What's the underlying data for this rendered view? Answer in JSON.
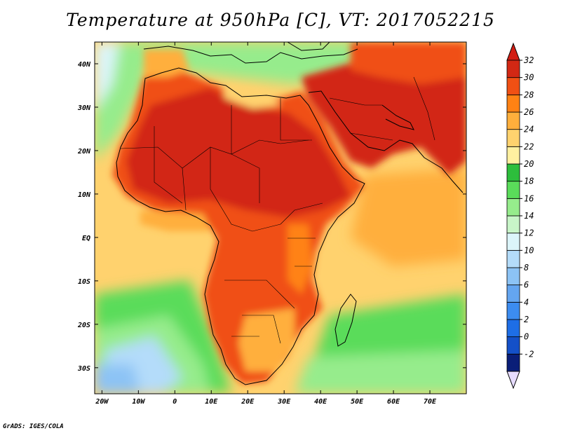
{
  "title": "Temperature at 950hPa [C], VT: 2017052215",
  "credit": "GrADS: IGES/COLA",
  "map": {
    "lon_range": [
      -22,
      80
    ],
    "lat_range": [
      -36,
      45
    ],
    "x_ticks": [
      {
        "lon": -20,
        "label": "20W"
      },
      {
        "lon": -10,
        "label": "10W"
      },
      {
        "lon": 0,
        "label": "0"
      },
      {
        "lon": 10,
        "label": "10E"
      },
      {
        "lon": 20,
        "label": "20E"
      },
      {
        "lon": 30,
        "label": "30E"
      },
      {
        "lon": 40,
        "label": "40E"
      },
      {
        "lon": 50,
        "label": "50E"
      },
      {
        "lon": 60,
        "label": "60E"
      },
      {
        "lon": 70,
        "label": "70E"
      }
    ],
    "y_ticks": [
      {
        "lat": 40,
        "label": "40N"
      },
      {
        "lat": 30,
        "label": "30N"
      },
      {
        "lat": 20,
        "label": "20N"
      },
      {
        "lat": 10,
        "label": "10N"
      },
      {
        "lat": 0,
        "label": "EQ"
      },
      {
        "lat": -10,
        "label": "10S"
      },
      {
        "lat": -20,
        "label": "20S"
      },
      {
        "lat": -30,
        "label": "30S"
      }
    ]
  },
  "colorbar": {
    "levels": [
      "-2",
      "0",
      "2",
      "4",
      "6",
      "8",
      "10",
      "12",
      "14",
      "16",
      "18",
      "20",
      "22",
      "24",
      "26",
      "28",
      "30",
      "32"
    ],
    "colors": [
      "#0a1e78",
      "#1450c8",
      "#1e6ee6",
      "#3c8cf0",
      "#64a5f0",
      "#8cc3f5",
      "#b4dcfa",
      "#dcf5fa",
      "#c8f5c8",
      "#96ec8c",
      "#5adc5a",
      "#2dbe3c",
      "#fff0a0",
      "#ffd26e",
      "#ffaf3c",
      "#ff8214",
      "#f05014",
      "#d22814"
    ],
    "low_color": "#e6dcff",
    "high_color": "#d21e14"
  }
}
